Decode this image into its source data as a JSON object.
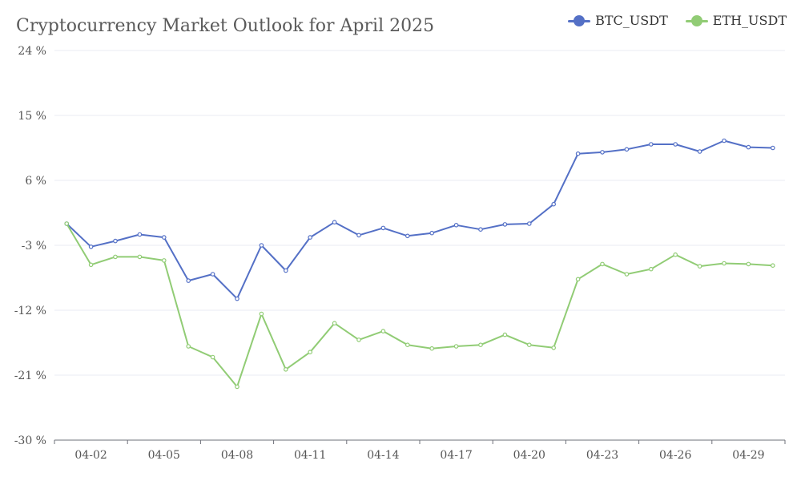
{
  "chart_data": {
    "type": "line",
    "title": "Cryptocurrency Market Outlook for April 2025",
    "x": [
      "04-01",
      "04-02",
      "04-03",
      "04-04",
      "04-05",
      "04-06",
      "04-07",
      "04-08",
      "04-09",
      "04-10",
      "04-11",
      "04-12",
      "04-13",
      "04-14",
      "04-15",
      "04-16",
      "04-17",
      "04-18",
      "04-19",
      "04-20",
      "04-21",
      "04-22",
      "04-23",
      "04-24",
      "04-25",
      "04-26",
      "04-27",
      "04-28",
      "04-29",
      "04-30"
    ],
    "x_tick_labels": [
      "04-02",
      "04-05",
      "04-08",
      "04-11",
      "04-14",
      "04-17",
      "04-20",
      "04-23",
      "04-26",
      "04-29"
    ],
    "y_tick_labels": [
      "24 %",
      "15 %",
      "6 %",
      "-3 %",
      "-12 %",
      "-21 %",
      "-30 %"
    ],
    "ylim": [
      -30,
      24
    ],
    "y_ticks": [
      24,
      15,
      6,
      -3,
      -12,
      -21,
      -30
    ],
    "grid": true,
    "legend_position": "top-right",
    "series": [
      {
        "name": "BTC_USDT",
        "color": "#5470c6",
        "values": [
          0.0,
          -3.2,
          -2.4,
          -1.5,
          -1.9,
          -7.9,
          -7.0,
          -10.4,
          -3.0,
          -6.5,
          -1.9,
          0.2,
          -1.6,
          -0.6,
          -1.7,
          -1.3,
          -0.2,
          -0.8,
          -0.1,
          0.0,
          2.7,
          9.7,
          9.9,
          10.3,
          11.0,
          11.0,
          10.0,
          11.5,
          10.6,
          10.5
        ]
      },
      {
        "name": "ETH_USDT",
        "color": "#91cc75",
        "values": [
          0.0,
          -5.7,
          -4.6,
          -4.6,
          -5.1,
          -17.0,
          -18.5,
          -22.6,
          -12.5,
          -20.2,
          -17.8,
          -13.8,
          -16.1,
          -14.9,
          -16.8,
          -17.3,
          -17.0,
          -16.8,
          -15.4,
          -16.8,
          -17.2,
          -7.7,
          -5.6,
          -7.0,
          -6.3,
          -4.3,
          -5.9,
          -5.5,
          -5.6,
          -5.8
        ]
      }
    ]
  }
}
